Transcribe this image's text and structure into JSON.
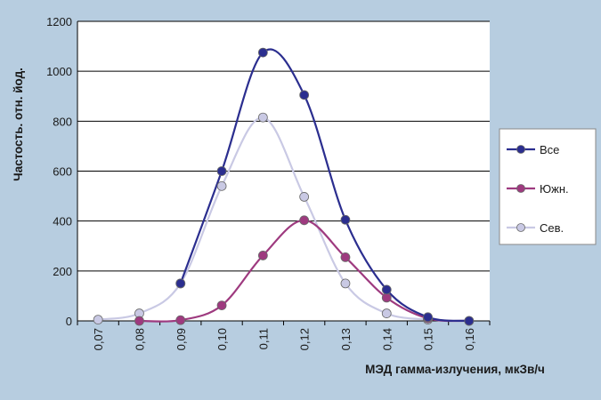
{
  "chart_data": {
    "type": "line",
    "title": "",
    "xlabel": "МЭД гамма-излучения, мкЗв/ч",
    "ylabel": "Частость. отн. йод.",
    "categories": [
      "0,07",
      "0,08",
      "0,09",
      "0,10",
      "0,11",
      "0,12",
      "0,13",
      "0,14",
      "0,15",
      "0,16"
    ],
    "ylim": [
      0,
      1200
    ],
    "yticks": [
      0,
      200,
      400,
      600,
      800,
      1000,
      1200
    ],
    "grid": true,
    "smooth": true,
    "legend_position": "right",
    "series": [
      {
        "name": "Все",
        "color": "#2b2e8f",
        "marker_fill": "#2b2e8f",
        "values": [
          null,
          null,
          150,
          600,
          1075,
          905,
          405,
          125,
          15,
          0
        ]
      },
      {
        "name": "Южн.",
        "color": "#9e3a7f",
        "marker_fill": "#9e3a7f",
        "values": [
          null,
          0,
          3,
          62,
          262,
          403,
          255,
          93,
          10,
          0
        ]
      },
      {
        "name": "Сев.",
        "color": "#c9c9e4",
        "marker_fill": "#c9c9e4",
        "values": [
          5,
          30,
          150,
          540,
          815,
          497,
          150,
          30,
          5,
          null
        ]
      }
    ]
  }
}
